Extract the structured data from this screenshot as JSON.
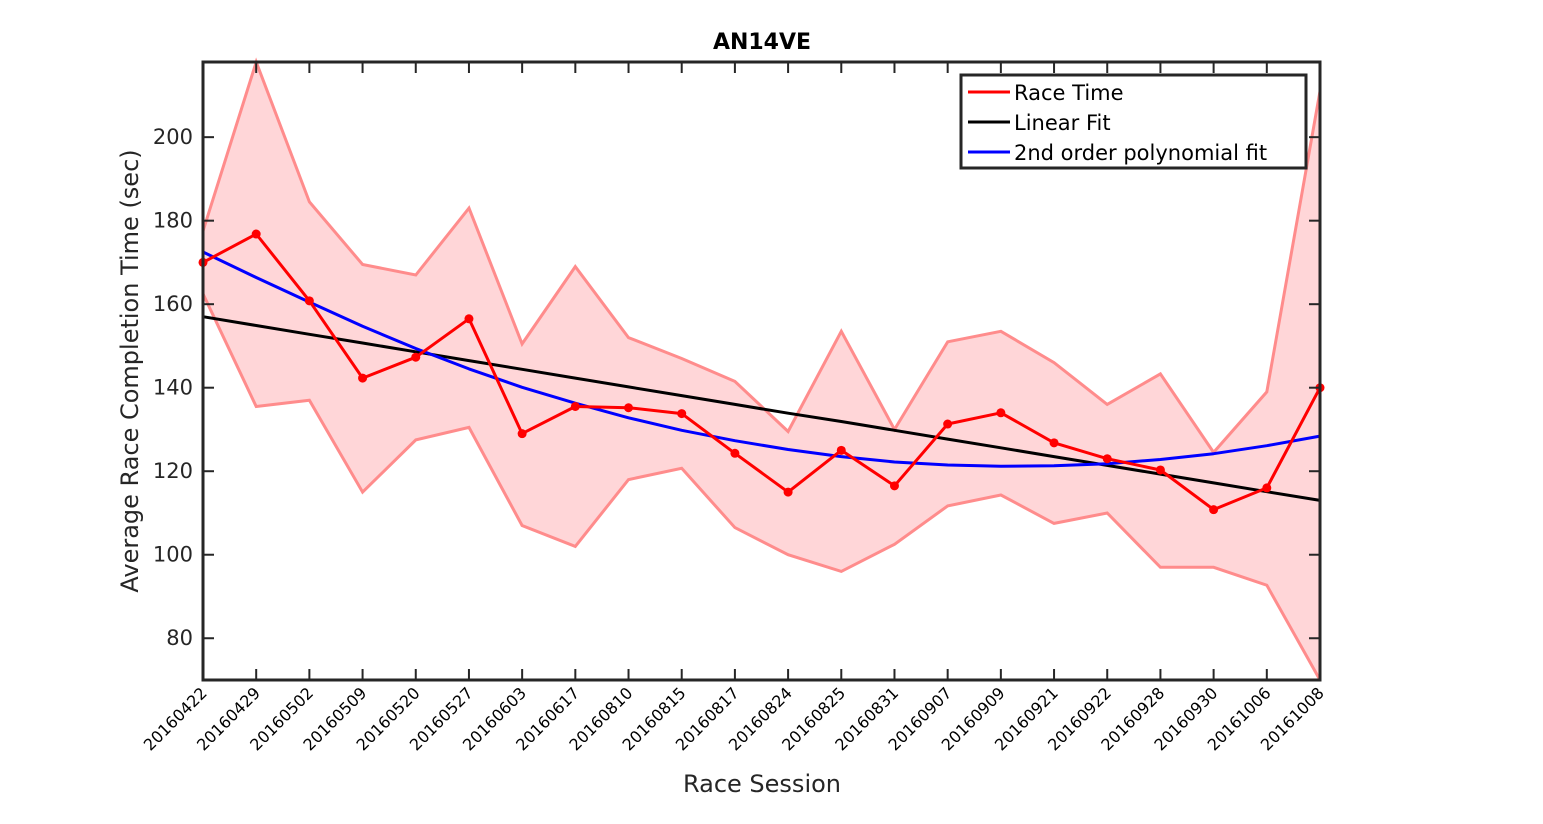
{
  "chart_data": {
    "type": "line",
    "title": "AN14VE",
    "xlabel": "Race Session",
    "ylabel": "Average Race Completion Time (sec)",
    "ylim": [
      70,
      218
    ],
    "yticks": [
      80,
      100,
      120,
      140,
      160,
      180,
      200
    ],
    "categories": [
      "20160422",
      "20160429",
      "20160502",
      "20160509",
      "20160520",
      "20160527",
      "20160603",
      "20160617",
      "20160810",
      "20160815",
      "20160817",
      "20160824",
      "20160825",
      "20160831",
      "20160907",
      "20160909",
      "20160921",
      "20160922",
      "20160928",
      "20160930",
      "20161006",
      "20161008"
    ],
    "series": [
      {
        "name": "Race Time",
        "color": "#ff0000",
        "values": [
          170,
          176.8,
          160.8,
          142.3,
          147.3,
          156.5,
          129,
          135.5,
          135.2,
          133.8,
          124.3,
          115,
          125,
          116.5,
          131.3,
          134,
          126.8,
          123,
          120.3,
          110.8,
          116,
          140
        ]
      },
      {
        "name": "Linear Fit",
        "color": "#000000",
        "values": [
          157,
          154.9,
          152.8,
          150.7,
          148.6,
          146.5,
          144.4,
          142.3,
          140.2,
          138.1,
          136,
          133.9,
          131.9,
          129.8,
          127.7,
          125.6,
          123.5,
          121.4,
          119.3,
          117.2,
          115.1,
          113
        ]
      },
      {
        "name": "2nd order polynomial fit",
        "color": "#0000ff",
        "values": [
          172.5,
          166.4,
          160.5,
          154.7,
          149.4,
          144.5,
          140.1,
          136.3,
          132.8,
          129.8,
          127.3,
          125.2,
          123.5,
          122.2,
          121.5,
          121.2,
          121.3,
          121.8,
          122.8,
          124.2,
          126.1,
          128.4
        ]
      }
    ],
    "band": {
      "color": "#ffd6d8",
      "edge_color": "#ff8c8c",
      "upper": [
        177.5,
        218,
        184.5,
        169.5,
        167,
        183,
        150.5,
        169,
        152,
        147,
        141.5,
        129.5,
        153.5,
        130,
        151,
        153.5,
        146,
        136,
        143.3,
        124.5,
        139,
        211
      ],
      "lower": [
        162.5,
        135.5,
        137,
        115,
        127.5,
        130.5,
        107,
        102,
        118,
        120.7,
        106.5,
        100,
        96,
        102.5,
        111.7,
        114.3,
        107.5,
        110,
        97,
        97,
        92.7,
        70
      ]
    },
    "grid": false,
    "legend": "top-right"
  }
}
